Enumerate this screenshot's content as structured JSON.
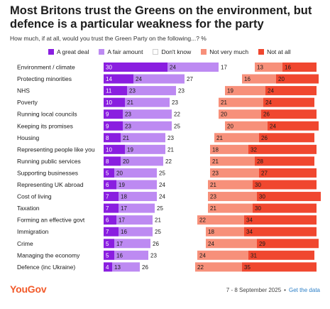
{
  "header": {
    "title": "Most Britons trust the Greens on the environment, but defence is a particular weakness for the party",
    "subtitle": "How much, if at all, would you trust the Green Party on the following...? %"
  },
  "legend": [
    {
      "label": "A great deal",
      "color": "#8a1ee0"
    },
    {
      "label": "A fair amount",
      "color": "#bd8af2"
    },
    {
      "label": "Don't know",
      "color": "#ffffff"
    },
    {
      "label": "Not very much",
      "color": "#f7907a"
    },
    {
      "label": "Not at all",
      "color": "#f0472f"
    }
  ],
  "chart_data": {
    "type": "bar",
    "orientation": "horizontal",
    "stacked": true,
    "categories": [
      "Environment / climate",
      "Protecting minorities",
      "NHS",
      "Poverty",
      "Running local councils",
      "Keeping its promises",
      "Housing",
      "Representing people like you",
      "Running public services",
      "Supporting businesses",
      "Representing UK abroad",
      "Cost of living",
      "Taxation",
      "Forming an effective govt",
      "Immigration",
      "Crime",
      "Managing the economy",
      "Defence (inc Ukraine)"
    ],
    "series": [
      {
        "name": "A great deal",
        "color": "#8a1ee0",
        "values": [
          30,
          14,
          11,
          10,
          9,
          9,
          8,
          10,
          8,
          5,
          6,
          7,
          7,
          6,
          7,
          5,
          5,
          4
        ]
      },
      {
        "name": "A fair amount",
        "color": "#bd8af2",
        "values": [
          24,
          24,
          23,
          21,
          23,
          23,
          21,
          19,
          20,
          20,
          19,
          18,
          17,
          17,
          16,
          17,
          16,
          13
        ]
      },
      {
        "name": "Don't know",
        "color": "#ffffff",
        "values": [
          17,
          27,
          23,
          23,
          22,
          25,
          23,
          21,
          22,
          25,
          24,
          24,
          25,
          21,
          25,
          26,
          23,
          26
        ]
      },
      {
        "name": "Not very much",
        "color": "#f7907a",
        "values": [
          13,
          16,
          19,
          21,
          20,
          20,
          21,
          18,
          21,
          23,
          21,
          23,
          21,
          22,
          18,
          24,
          24,
          22
        ]
      },
      {
        "name": "Not at all",
        "color": "#f0472f",
        "values": [
          16,
          20,
          24,
          24,
          26,
          24,
          26,
          32,
          28,
          27,
          30,
          30,
          30,
          34,
          34,
          29,
          31,
          35
        ]
      }
    ],
    "xlim": [
      0,
      100
    ],
    "grid": false,
    "legend_position": "top"
  },
  "footer": {
    "logo": "YouGov",
    "date": "7 - 8 September 2025",
    "separator": "•",
    "link": "Get the data"
  }
}
